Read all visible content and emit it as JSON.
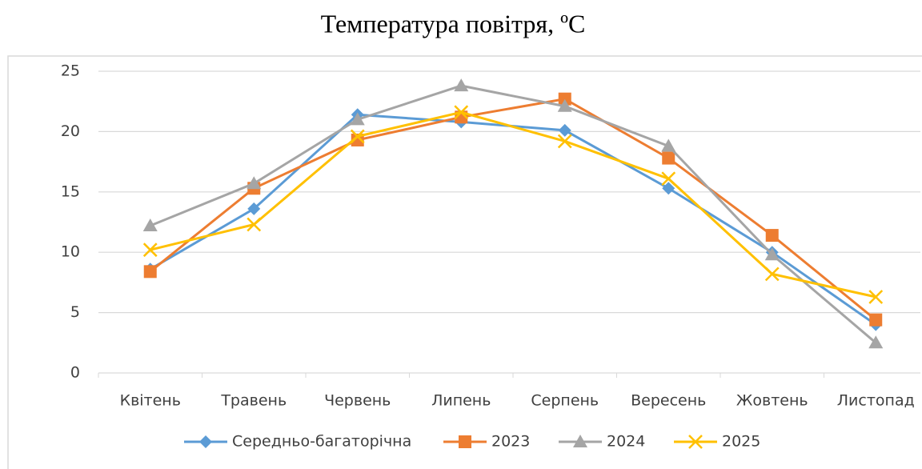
{
  "chart_data": {
    "type": "line",
    "title": "Температура повітря, ºС",
    "categories": [
      "Квітень",
      "Травень",
      "Червень",
      "Липень",
      "Серпень",
      "Вересень",
      "Жовтень",
      "Листопад"
    ],
    "series": [
      {
        "name": "Середньо-багаторічна",
        "color": "#5b9bd5",
        "marker": "diamond",
        "values": [
          8.6,
          13.6,
          21.4,
          20.8,
          20.1,
          15.3,
          10.0,
          4.0
        ]
      },
      {
        "name": "2023",
        "color": "#ed7d31",
        "marker": "square",
        "values": [
          8.4,
          15.3,
          19.3,
          21.2,
          22.7,
          17.8,
          11.4,
          4.4
        ]
      },
      {
        "name": "2024",
        "color": "#a5a5a5",
        "marker": "triangle",
        "values": [
          12.2,
          15.7,
          21.0,
          23.8,
          22.1,
          18.8,
          9.8,
          2.5
        ]
      },
      {
        "name": "2025",
        "color": "#ffc000",
        "marker": "x",
        "values": [
          10.2,
          12.3,
          19.6,
          21.6,
          19.2,
          16.1,
          8.2,
          6.3
        ]
      }
    ],
    "ylim": [
      0,
      25
    ],
    "yticks": [
      0,
      5,
      10,
      15,
      20,
      25
    ],
    "grid": true,
    "legend": "bottom"
  }
}
